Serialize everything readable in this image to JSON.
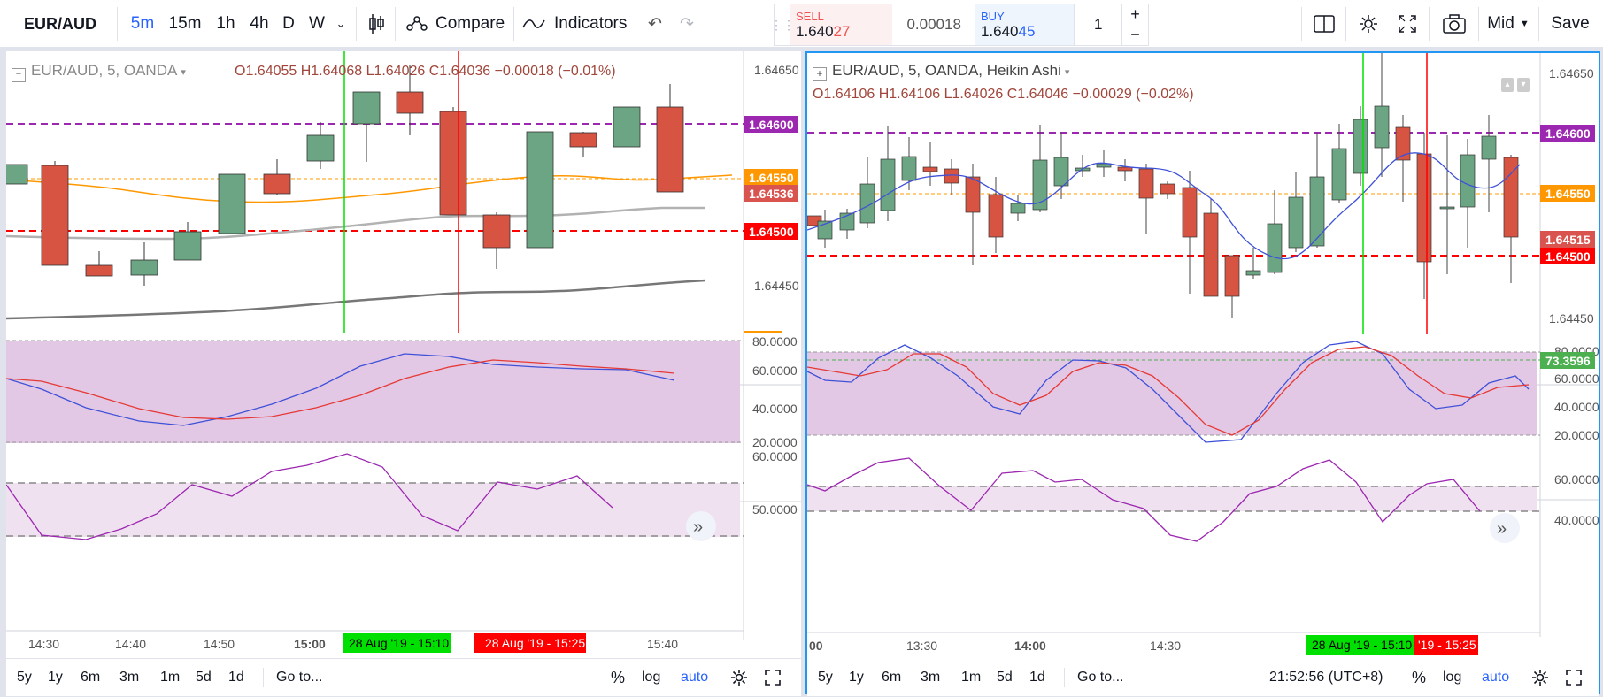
{
  "toolbar": {
    "symbol": "EUR/AUD",
    "tf": [
      "5m",
      "15m",
      "1h",
      "4h",
      "D",
      "W"
    ],
    "compare": "Compare",
    "indicators": "Indicators",
    "mid": "Mid",
    "save": "Save"
  },
  "trade": {
    "sell_label": "SELL",
    "sell_price_a": "1.640",
    "sell_price_b": "27",
    "spread": "0.00018",
    "buy_label": "BUY",
    "buy_price_a": "1.640",
    "buy_price_b": "45",
    "qty": "1"
  },
  "left": {
    "title": "EUR/AUD, 5, OANDA",
    "ohlc": "O1.64055  H1.64068  L1.64026  C1.64036  −0.00018 (−0.01%)",
    "price_ticks": [
      "1.64650",
      "1.64450"
    ],
    "tags": [
      {
        "t": "1.64600",
        "c": "#9c27b0"
      },
      {
        "t": "1.64550",
        "c": "#ff9800"
      },
      {
        "t": "1.64536",
        "c": "#d9534f"
      },
      {
        "t": "1.64500",
        "c": "#f00"
      }
    ],
    "osc1_ticks": [
      "80.0000",
      "60.0000",
      "40.0000",
      "20.0000"
    ],
    "osc2_ticks": [
      "60.0000",
      "50.0000"
    ],
    "time_ticks": [
      "14:30",
      "14:40",
      "14:50",
      "15:00",
      "15:40"
    ],
    "time_tag_green": "28 Aug '19 - 15:10",
    "time_tag_red": "28 Aug '19 - 15:25",
    "bottom": [
      "5y",
      "1y",
      "6m",
      "3m",
      "1m",
      "5d",
      "1d",
      "Go to...",
      "%",
      "log",
      "auto"
    ]
  },
  "right": {
    "title": "EUR/AUD, 5, OANDA, Heikin Ashi",
    "ohlc": "O1.64106  H1.64106  L1.64026  C1.64046  −0.00029 (−0.02%)",
    "price_ticks": [
      "1.64650",
      "1.64450"
    ],
    "tags": [
      {
        "t": "1.64600",
        "c": "#9c27b0"
      },
      {
        "t": "1.64550",
        "c": "#ff9800"
      },
      {
        "t": "1.64515",
        "c": "#d9534f"
      },
      {
        "t": "1.64500",
        "c": "#f00"
      }
    ],
    "osc1_ticks": [
      "80.0000",
      "60.0000",
      "40.0000",
      "20.0000"
    ],
    "osc1_tag": "73.3596",
    "osc2_ticks": [
      "60.0000",
      "40.0000"
    ],
    "time_ticks": [
      "00",
      "13:30",
      "14:00",
      "14:30"
    ],
    "time_tag_green": "28 Aug '19 - 15:10",
    "time_tag_red": "'19 - 15:25",
    "clock": "21:52:56 (UTC+8)",
    "bottom": [
      "5y",
      "1y",
      "6m",
      "3m",
      "1m",
      "5d",
      "1d",
      "Go to...",
      "%",
      "log",
      "auto"
    ]
  },
  "colors": {
    "up": "#6ba583",
    "down": "#d75442",
    "accent": "#2962ff"
  }
}
